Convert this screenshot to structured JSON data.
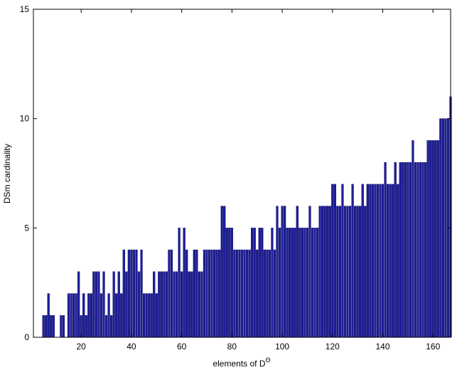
{
  "chart_data": {
    "type": "bar",
    "x_label": {
      "text": "elements of D",
      "superscript": "Θ"
    },
    "y_label": "DSm cardinality",
    "color": "#1e1e96",
    "xlim": [
      1,
      167
    ],
    "xticks": [
      20,
      40,
      60,
      80,
      100,
      120,
      140,
      160
    ],
    "ylim": [
      0,
      15
    ],
    "yticks": [
      0,
      5,
      10,
      15
    ],
    "x": [
      1,
      2,
      3,
      4,
      5,
      6,
      7,
      8,
      9,
      10,
      11,
      12,
      13,
      14,
      15,
      16,
      17,
      18,
      19,
      20,
      21,
      22,
      23,
      24,
      25,
      26,
      27,
      28,
      29,
      30,
      31,
      32,
      33,
      34,
      35,
      36,
      37,
      38,
      39,
      40,
      41,
      42,
      43,
      44,
      45,
      46,
      47,
      48,
      49,
      50,
      51,
      52,
      53,
      54,
      55,
      56,
      57,
      58,
      59,
      60,
      61,
      62,
      63,
      64,
      65,
      66,
      67,
      68,
      69,
      70,
      71,
      72,
      73,
      74,
      75,
      76,
      77,
      78,
      79,
      80,
      81,
      82,
      83,
      84,
      85,
      86,
      87,
      88,
      89,
      90,
      91,
      92,
      93,
      94,
      95,
      96,
      97,
      98,
      99,
      100,
      101,
      102,
      103,
      104,
      105,
      106,
      107,
      108,
      109,
      110,
      111,
      112,
      113,
      114,
      115,
      116,
      117,
      118,
      119,
      120,
      121,
      122,
      123,
      124,
      125,
      126,
      127,
      128,
      129,
      130,
      131,
      132,
      133,
      134,
      135,
      136,
      137,
      138,
      139,
      140,
      141,
      142,
      143,
      144,
      145,
      146,
      147,
      148,
      149,
      150,
      151,
      152,
      153,
      154,
      155,
      156,
      157,
      158,
      159,
      160,
      161,
      162,
      163,
      164,
      165,
      166,
      167
    ],
    "values": [
      0,
      0,
      0,
      0,
      1,
      1,
      2,
      1,
      1,
      0,
      0,
      1,
      1,
      0,
      2,
      2,
      2,
      2,
      3,
      1,
      2,
      1,
      2,
      2,
      3,
      3,
      3,
      2,
      3,
      1,
      2,
      1,
      3,
      2,
      3,
      2,
      4,
      3,
      4,
      4,
      4,
      4,
      3,
      4,
      2,
      2,
      2,
      2,
      3,
      2,
      3,
      3,
      3,
      3,
      4,
      4,
      3,
      3,
      5,
      3,
      5,
      4,
      3,
      3,
      4,
      4,
      3,
      3,
      4,
      4,
      4,
      4,
      4,
      4,
      4,
      6,
      6,
      5,
      5,
      5,
      4,
      4,
      4,
      4,
      4,
      4,
      4,
      5,
      5,
      4,
      5,
      5,
      4,
      4,
      4,
      5,
      4,
      6,
      5,
      6,
      6,
      5,
      5,
      5,
      5,
      6,
      5,
      5,
      5,
      5,
      6,
      5,
      5,
      5,
      6,
      6,
      6,
      6,
      6,
      7,
      7,
      6,
      6,
      7,
      6,
      6,
      6,
      7,
      6,
      6,
      6,
      7,
      6,
      7,
      7,
      7,
      7,
      7,
      7,
      7,
      8,
      7,
      7,
      7,
      8,
      7,
      8,
      8,
      8,
      8,
      8,
      9,
      8,
      8,
      8,
      8,
      8,
      9,
      9,
      9,
      9,
      9,
      10,
      10,
      10,
      10,
      11
    ]
  }
}
